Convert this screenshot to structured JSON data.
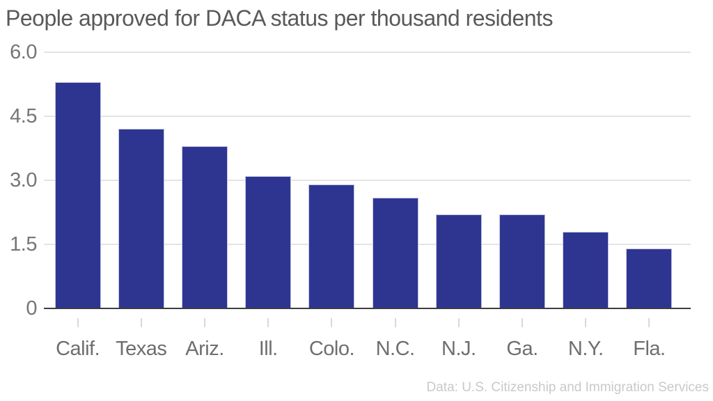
{
  "chart_data": {
    "type": "bar",
    "title": "People approved for DACA status per thousand residents",
    "categories": [
      "Calif.",
      "Texas",
      "Ariz.",
      "Ill.",
      "Colo.",
      "N.C.",
      "N.J.",
      "Ga.",
      "N.Y.",
      "Fla."
    ],
    "values": [
      5.3,
      4.2,
      3.8,
      3.1,
      2.9,
      2.6,
      2.2,
      2.2,
      1.8,
      1.4
    ],
    "xlabel": "",
    "ylabel": "",
    "ylim": [
      0,
      6
    ],
    "y_ticks": [
      {
        "label": "6.0",
        "value": 6.0
      },
      {
        "label": "4.5",
        "value": 4.5
      },
      {
        "label": "3.0",
        "value": 3.0
      },
      {
        "label": "1.5",
        "value": 1.5
      },
      {
        "label": "0",
        "value": 0.0
      }
    ],
    "grid": true,
    "legend": "none",
    "source_note": "Data: U.S. Citizenship and Immigration Services",
    "colors": {
      "bar": "#2e3591",
      "gridline": "#e4e4e4",
      "axis_line": "#3d3d3d",
      "title_text": "#595959",
      "axis_text": "#6e6e6e",
      "source_text": "#c9c9c9"
    }
  }
}
